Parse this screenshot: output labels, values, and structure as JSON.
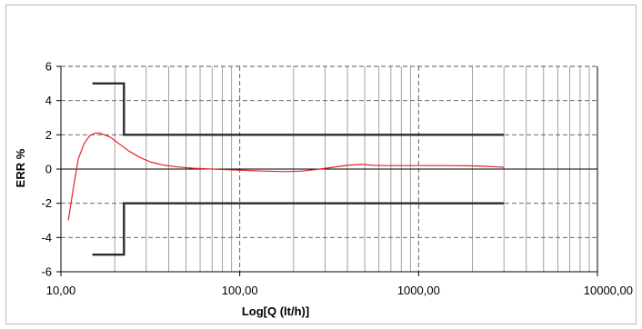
{
  "chart_data": {
    "type": "line",
    "title": "",
    "xlabel": "Log[Q (lt/h)]",
    "ylabel": "ERR %",
    "x_scale": "log",
    "xlim": [
      10,
      10000
    ],
    "ylim": [
      -6,
      6
    ],
    "x_ticks": [
      {
        "value": 10,
        "label": "10,00"
      },
      {
        "value": 100,
        "label": "100,00"
      },
      {
        "value": 1000,
        "label": "1000,00"
      },
      {
        "value": 10000,
        "label": "10000,00"
      }
    ],
    "y_ticks": [
      {
        "value": 6,
        "label": "6"
      },
      {
        "value": 4,
        "label": "4"
      },
      {
        "value": 2,
        "label": "2"
      },
      {
        "value": 0,
        "label": "0"
      },
      {
        "value": -2,
        "label": "-2"
      },
      {
        "value": -4,
        "label": "-4"
      },
      {
        "value": -6,
        "label": "-6"
      }
    ],
    "grid": {
      "vertical_minor": true,
      "major_dashed": true
    },
    "colors": {
      "error_curve": "#e8202a",
      "limits": "#2b2b2b",
      "grid": "#8c8c8c"
    },
    "series": [
      {
        "id": "error-curve",
        "x": [
          11,
          11.7,
          12.5,
          13.5,
          14.5,
          15.5,
          16.5,
          17.5,
          19,
          21,
          24,
          28,
          32,
          38,
          45,
          55,
          70,
          90,
          110,
          140,
          180,
          220,
          270,
          330,
          400,
          480,
          560,
          650,
          800,
          1000,
          1200,
          1500,
          1800,
          2100,
          2400,
          2800,
          3000
        ],
        "y": [
          -3.0,
          -1.2,
          0.6,
          1.5,
          1.95,
          2.1,
          2.1,
          2.0,
          1.85,
          1.5,
          1.05,
          0.65,
          0.4,
          0.22,
          0.12,
          0.05,
          0.0,
          -0.05,
          -0.08,
          -0.12,
          -0.15,
          -0.12,
          -0.02,
          0.1,
          0.22,
          0.27,
          0.22,
          0.2,
          0.2,
          0.2,
          0.2,
          0.2,
          0.19,
          0.18,
          0.16,
          0.12,
          0.1
        ]
      },
      {
        "id": "upper-limit",
        "x": [
          15,
          22.5,
          22.5,
          3000
        ],
        "y": [
          5,
          5,
          2,
          2
        ]
      },
      {
        "id": "lower-limit",
        "x": [
          15,
          22.5,
          22.5,
          3000
        ],
        "y": [
          -5,
          -5,
          -2,
          -2
        ]
      }
    ]
  }
}
